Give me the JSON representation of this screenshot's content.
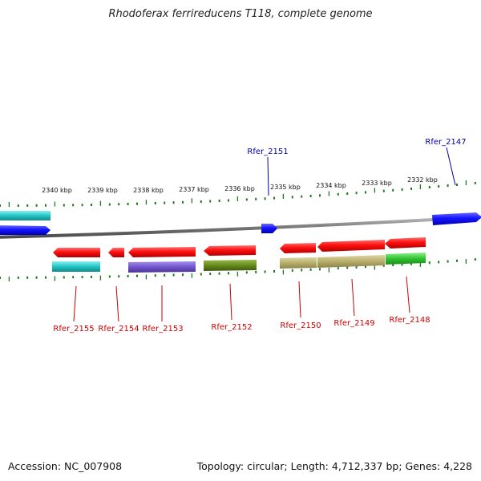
{
  "title": "Rhodoferax ferrireducens T118, complete genome",
  "footer": {
    "accession": "Accession: NC_007908",
    "summary": "Topology: circular; Length: 4,712,337 bp; Genes: 4,228"
  },
  "scale_labels": [
    "2340 kbp",
    "2339 kbp",
    "2338 kbp",
    "2337 kbp",
    "2336 kbp",
    "2335 kbp",
    "2334 kbp",
    "2333 kbp",
    "2332 kbp"
  ],
  "genes_forward": [
    {
      "label": "Rfer_2151",
      "color": "#0a0ae0"
    },
    {
      "label": "Rfer_2147",
      "color": "#0a0ae0"
    }
  ],
  "genes_reverse": [
    {
      "label": "Rfer_2155",
      "color": "#e00000"
    },
    {
      "label": "Rfer_2154",
      "color": "#e00000"
    },
    {
      "label": "Rfer_2153",
      "color": "#e00000"
    },
    {
      "label": "Rfer_2152",
      "color": "#e00000"
    },
    {
      "label": "Rfer_2150",
      "color": "#e00000"
    },
    {
      "label": "Rfer_2149",
      "color": "#e00000"
    },
    {
      "label": "Rfer_2148",
      "color": "#e00000"
    }
  ],
  "colors": {
    "backbone": "#7a7a7a",
    "forward_gene": "#1010ff",
    "reverse_gene": "#ff1010",
    "tick": "#1a7a1a",
    "cog_cyan": "#25c8c8",
    "cog_purple": "#7a5ad0",
    "cog_olive": "#6a8a20",
    "cog_khaki": "#b8b070",
    "cog_green": "#30c030"
  }
}
